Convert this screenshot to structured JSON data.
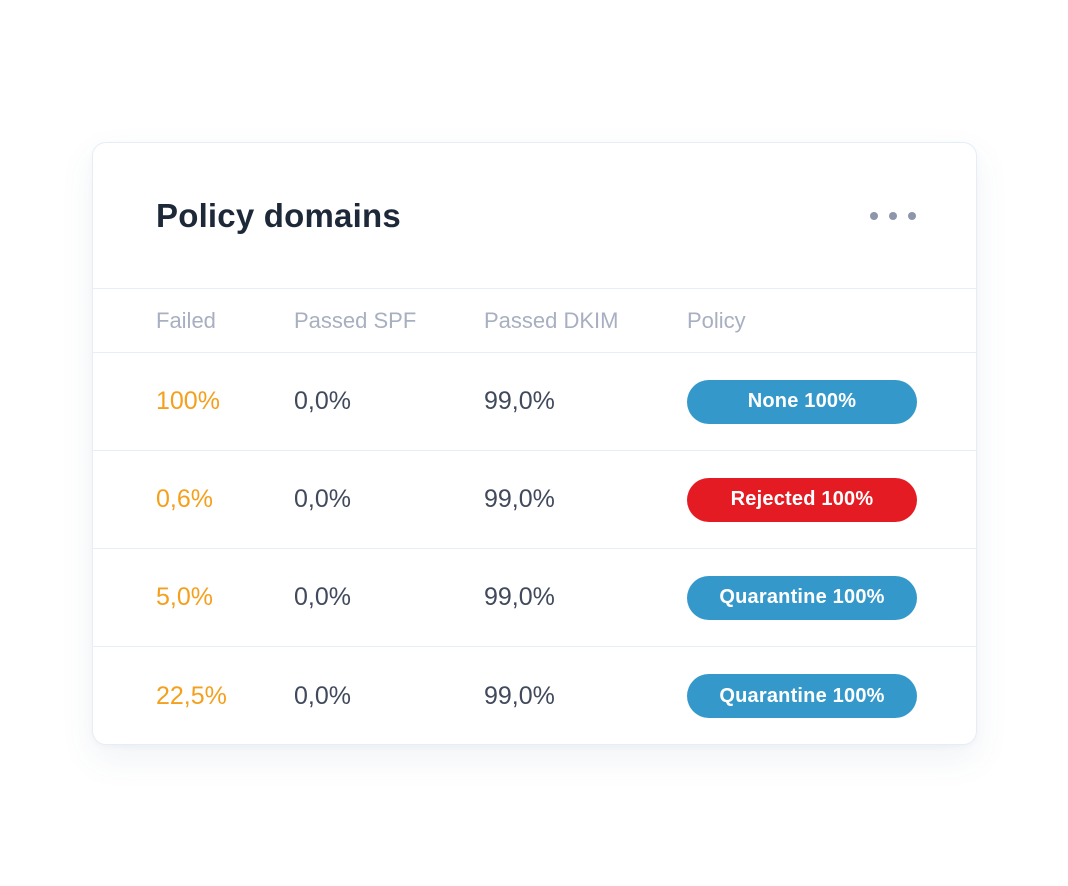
{
  "card": {
    "title": "Policy domains",
    "menu_icon": "ellipsis-horizontal-icon"
  },
  "table": {
    "columns": {
      "failed": "Failed",
      "passed_spf": "Passed SPF",
      "passed_dkim": "Passed DKIM",
      "policy": "Policy"
    },
    "rows": [
      {
        "failed": "100%",
        "passed_spf": "0,0%",
        "passed_dkim": "99,0%",
        "policy": {
          "label": "None 100%",
          "color": "#3498cb"
        }
      },
      {
        "failed": "0,6%",
        "passed_spf": "0,0%",
        "passed_dkim": "99,0%",
        "policy": {
          "label": "Rejected 100%",
          "color": "#e51b23"
        }
      },
      {
        "failed": "5,0%",
        "passed_spf": "0,0%",
        "passed_dkim": "99,0%",
        "policy": {
          "label": "Quarantine 100%",
          "color": "#3498cb"
        }
      },
      {
        "failed": "22,5%",
        "passed_spf": "0,0%",
        "passed_dkim": "99,0%",
        "policy": {
          "label": "Quarantine 100%",
          "color": "#3498cb"
        }
      }
    ]
  },
  "colors": {
    "accent_orange": "#f5a01d",
    "badge_blue": "#3498cb",
    "badge_red": "#e51b23",
    "text_dark": "#414a5c",
    "title_dark": "#1d2839",
    "header_gray": "#a7afc1",
    "divider": "#e8eef6"
  }
}
